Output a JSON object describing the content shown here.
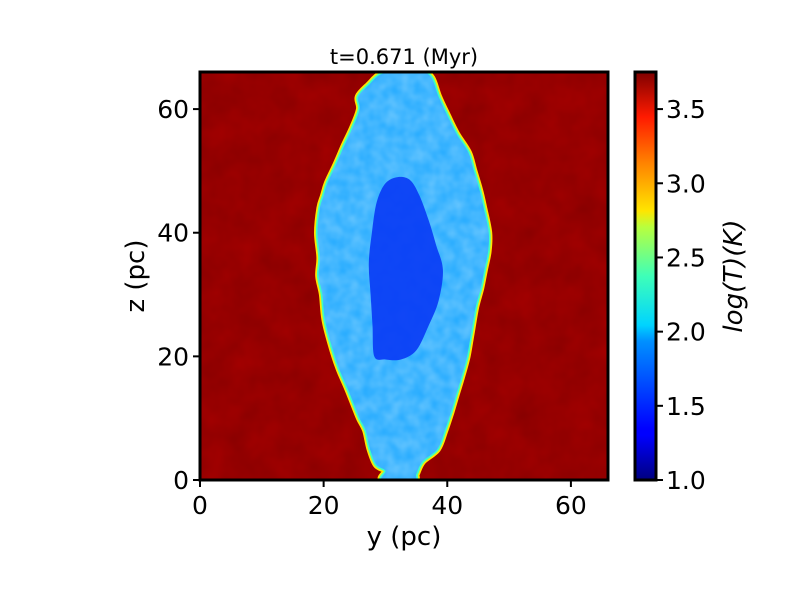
{
  "chart_data": {
    "type": "heatmap",
    "title": "t=0.671 (Myr)",
    "xlabel": "y (pc)",
    "ylabel": "z (pc)",
    "xlim": [
      0,
      66
    ],
    "ylim": [
      0,
      66
    ],
    "xticks": [
      0,
      20,
      40,
      60
    ],
    "yticks": [
      0,
      20,
      40,
      60
    ],
    "x_tick_labels": [
      "0",
      "20",
      "40",
      "60"
    ],
    "y_tick_labels": [
      "0",
      "20",
      "40",
      "60"
    ],
    "colorbar": {
      "label": "log(T)(K)",
      "colormap": "jet",
      "range": [
        1.0,
        3.75
      ],
      "ticks": [
        1.0,
        1.5,
        2.0,
        2.5,
        3.0,
        3.5
      ],
      "tick_labels": [
        "1.0",
        "1.5",
        "2.0",
        "2.5",
        "3.0",
        "3.5"
      ]
    },
    "field": {
      "background_value": 3.72,
      "outer_cloud_value": 1.95,
      "inner_core_value": 1.55,
      "outer_cloud_boundary": [
        [
          29.5,
          0
        ],
        [
          30.0,
          1.5
        ],
        [
          28.5,
          2.5
        ],
        [
          27.5,
          5
        ],
        [
          26.8,
          8
        ],
        [
          25.8,
          10
        ],
        [
          25.0,
          12
        ],
        [
          23.8,
          15
        ],
        [
          22.5,
          18
        ],
        [
          21.2,
          22
        ],
        [
          20.2,
          26
        ],
        [
          19.8,
          30
        ],
        [
          19.2,
          33
        ],
        [
          19.4,
          36
        ],
        [
          19.0,
          40
        ],
        [
          19.4,
          44
        ],
        [
          20.0,
          46
        ],
        [
          20.6,
          48
        ],
        [
          22.0,
          51
        ],
        [
          23.3,
          54
        ],
        [
          24.7,
          57
        ],
        [
          25.8,
          60
        ],
        [
          25.6,
          62
        ],
        [
          27.4,
          64
        ],
        [
          29.0,
          65.5
        ],
        [
          31.0,
          66
        ],
        [
          33.0,
          66
        ],
        [
          36.0,
          66
        ],
        [
          37.5,
          65
        ],
        [
          38.6,
          62
        ],
        [
          40.0,
          59
        ],
        [
          41.5,
          56
        ],
        [
          43.4,
          53
        ],
        [
          44.3,
          50
        ],
        [
          45.2,
          47
        ],
        [
          45.9,
          44
        ],
        [
          46.7,
          40
        ],
        [
          46.6,
          37
        ],
        [
          46.0,
          34
        ],
        [
          45.4,
          31
        ],
        [
          44.6,
          28
        ],
        [
          43.9,
          24
        ],
        [
          43.2,
          20
        ],
        [
          42.4,
          17
        ],
        [
          41.5,
          14
        ],
        [
          40.6,
          11
        ],
        [
          39.6,
          8
        ],
        [
          38.4,
          5
        ],
        [
          36.0,
          3
        ],
        [
          35.0,
          1
        ],
        [
          34.5,
          0
        ]
      ],
      "inner_core_boundary": [
        [
          28.2,
          20
        ],
        [
          27.9,
          25
        ],
        [
          27.6,
          30
        ],
        [
          27.3,
          35
        ],
        [
          27.8,
          40
        ],
        [
          28.6,
          45
        ],
        [
          30.0,
          48
        ],
        [
          32.0,
          49
        ],
        [
          34.0,
          48.5
        ],
        [
          35.5,
          46
        ],
        [
          37.0,
          42
        ],
        [
          38.2,
          38
        ],
        [
          39.3,
          34
        ],
        [
          38.6,
          29
        ],
        [
          37.0,
          25
        ],
        [
          35.0,
          21
        ],
        [
          32.5,
          19.5
        ],
        [
          30.0,
          19.5
        ]
      ]
    }
  }
}
